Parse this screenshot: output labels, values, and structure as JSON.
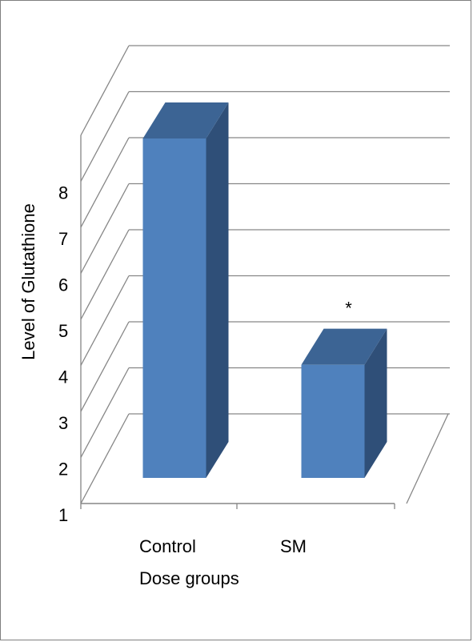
{
  "chart_data": {
    "type": "bar",
    "categories": [
      "Control",
      "SM"
    ],
    "values": [
      7.8,
      3.6
    ],
    "annotations": [
      "",
      "*"
    ],
    "title": "",
    "xlabel": "Dose groups",
    "ylabel": "Level of Glutathione",
    "yticks": [
      "1",
      "2",
      "3",
      "4",
      "5",
      "6",
      "7",
      "8"
    ],
    "ylim": [
      1,
      9
    ],
    "grid": true,
    "legend": "none",
    "colors": {
      "bar_front": "#4f81bd",
      "bar_top": "#3c6494",
      "bar_side": "#2f4f78",
      "grid": "#868686"
    }
  }
}
